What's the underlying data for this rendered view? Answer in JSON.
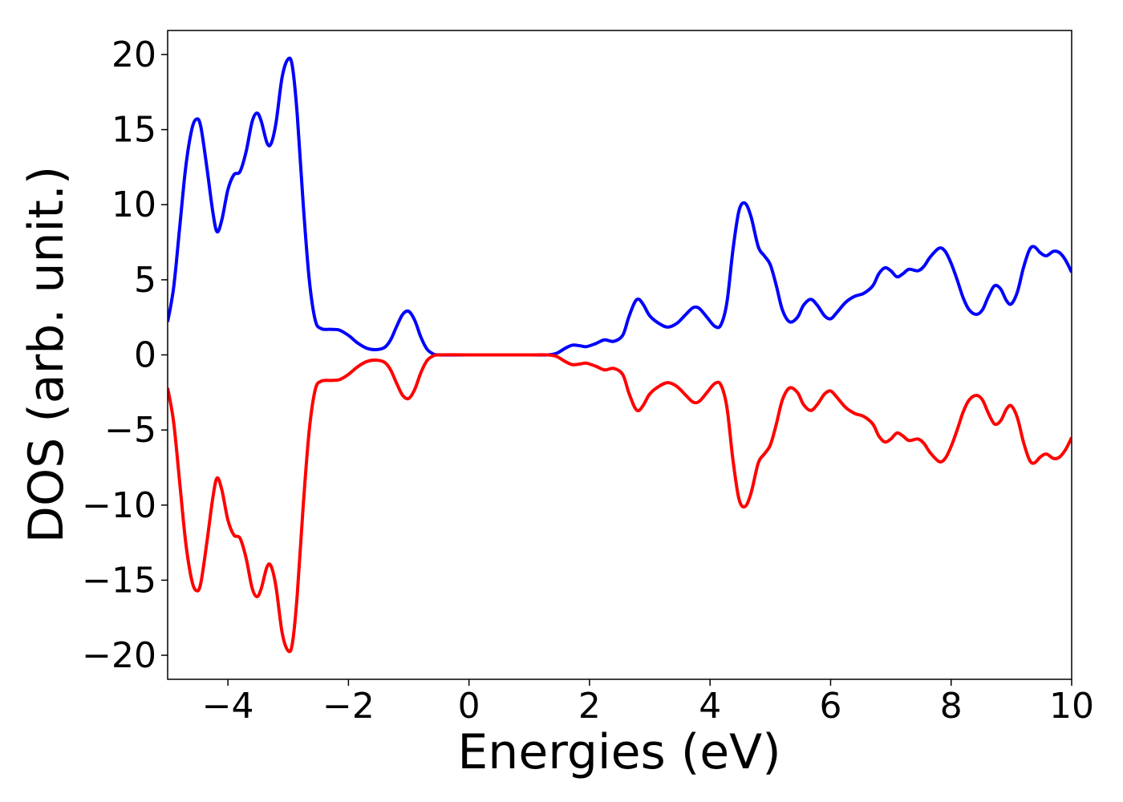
{
  "chart_data": {
    "type": "line",
    "xlabel": "Energies (eV)",
    "ylabel": "DOS (arb. unit.)",
    "xlim": [
      -5,
      10
    ],
    "ylim": [
      -21.6,
      21.6
    ],
    "grid": false,
    "x_ticks": [
      -4,
      -2,
      0,
      2,
      4,
      6,
      8,
      10
    ],
    "y_ticks": [
      -20,
      -15,
      -10,
      -5,
      0,
      5,
      10,
      15,
      20
    ],
    "x_tick_labels": [
      "−4",
      "−2",
      "0",
      "2",
      "4",
      "6",
      "8",
      "10"
    ],
    "y_tick_labels": [
      "−20",
      "−15",
      "−10",
      "−5",
      "0",
      "5",
      "10",
      "15",
      "20"
    ],
    "series": [
      {
        "color": "#0000ff",
        "points": [
          [
            -5.0,
            2.2
          ],
          [
            -4.9,
            4.5
          ],
          [
            -4.8,
            8.5
          ],
          [
            -4.7,
            12.5
          ],
          [
            -4.6,
            15.0
          ],
          [
            -4.52,
            15.7
          ],
          [
            -4.45,
            15.2
          ],
          [
            -4.35,
            12.5
          ],
          [
            -4.25,
            9.5
          ],
          [
            -4.18,
            8.2
          ],
          [
            -4.1,
            9.0
          ],
          [
            -4.0,
            11.0
          ],
          [
            -3.9,
            12.0
          ],
          [
            -3.8,
            12.2
          ],
          [
            -3.7,
            13.5
          ],
          [
            -3.6,
            15.5
          ],
          [
            -3.52,
            16.1
          ],
          [
            -3.45,
            15.6
          ],
          [
            -3.35,
            14.1
          ],
          [
            -3.28,
            14.1
          ],
          [
            -3.2,
            15.5
          ],
          [
            -3.1,
            18.5
          ],
          [
            -3.0,
            19.7
          ],
          [
            -2.93,
            19.2
          ],
          [
            -2.85,
            16.0
          ],
          [
            -2.75,
            10.0
          ],
          [
            -2.65,
            5.0
          ],
          [
            -2.55,
            2.3
          ],
          [
            -2.45,
            1.75
          ],
          [
            -2.3,
            1.7
          ],
          [
            -2.15,
            1.65
          ],
          [
            -2.0,
            1.3
          ],
          [
            -1.85,
            0.8
          ],
          [
            -1.7,
            0.45
          ],
          [
            -1.55,
            0.35
          ],
          [
            -1.4,
            0.5
          ],
          [
            -1.3,
            1.0
          ],
          [
            -1.2,
            1.9
          ],
          [
            -1.1,
            2.7
          ],
          [
            -1.0,
            2.9
          ],
          [
            -0.9,
            2.3
          ],
          [
            -0.8,
            1.2
          ],
          [
            -0.7,
            0.4
          ],
          [
            -0.6,
            0.08
          ],
          [
            -0.5,
            0.0
          ],
          [
            0.0,
            0.0
          ],
          [
            1.0,
            0.0
          ],
          [
            1.3,
            0.0
          ],
          [
            1.45,
            0.1
          ],
          [
            1.6,
            0.45
          ],
          [
            1.72,
            0.65
          ],
          [
            1.85,
            0.6
          ],
          [
            1.95,
            0.55
          ],
          [
            2.1,
            0.75
          ],
          [
            2.25,
            1.0
          ],
          [
            2.4,
            0.9
          ],
          [
            2.55,
            1.3
          ],
          [
            2.65,
            2.5
          ],
          [
            2.75,
            3.5
          ],
          [
            2.82,
            3.7
          ],
          [
            2.9,
            3.3
          ],
          [
            3.0,
            2.6
          ],
          [
            3.15,
            2.1
          ],
          [
            3.3,
            1.85
          ],
          [
            3.45,
            2.1
          ],
          [
            3.6,
            2.7
          ],
          [
            3.72,
            3.15
          ],
          [
            3.82,
            3.1
          ],
          [
            3.95,
            2.5
          ],
          [
            4.08,
            1.9
          ],
          [
            4.18,
            2.0
          ],
          [
            4.28,
            3.5
          ],
          [
            4.38,
            7.0
          ],
          [
            4.48,
            9.6
          ],
          [
            4.58,
            10.1
          ],
          [
            4.68,
            9.2
          ],
          [
            4.8,
            7.2
          ],
          [
            4.9,
            6.6
          ],
          [
            5.0,
            6.0
          ],
          [
            5.1,
            4.6
          ],
          [
            5.2,
            3.0
          ],
          [
            5.32,
            2.2
          ],
          [
            5.45,
            2.5
          ],
          [
            5.55,
            3.3
          ],
          [
            5.67,
            3.7
          ],
          [
            5.78,
            3.3
          ],
          [
            5.9,
            2.6
          ],
          [
            6.0,
            2.4
          ],
          [
            6.1,
            2.8
          ],
          [
            6.25,
            3.5
          ],
          [
            6.4,
            3.9
          ],
          [
            6.55,
            4.1
          ],
          [
            6.7,
            4.6
          ],
          [
            6.8,
            5.4
          ],
          [
            6.9,
            5.8
          ],
          [
            7.0,
            5.6
          ],
          [
            7.1,
            5.2
          ],
          [
            7.2,
            5.4
          ],
          [
            7.3,
            5.7
          ],
          [
            7.45,
            5.6
          ],
          [
            7.55,
            5.9
          ],
          [
            7.65,
            6.5
          ],
          [
            7.8,
            7.1
          ],
          [
            7.9,
            6.9
          ],
          [
            8.0,
            6.1
          ],
          [
            8.1,
            5.0
          ],
          [
            8.2,
            3.8
          ],
          [
            8.3,
            3.0
          ],
          [
            8.42,
            2.7
          ],
          [
            8.52,
            3.0
          ],
          [
            8.62,
            3.9
          ],
          [
            8.72,
            4.6
          ],
          [
            8.82,
            4.4
          ],
          [
            8.92,
            3.6
          ],
          [
            9.0,
            3.4
          ],
          [
            9.1,
            4.2
          ],
          [
            9.2,
            5.8
          ],
          [
            9.3,
            7.0
          ],
          [
            9.38,
            7.2
          ],
          [
            9.48,
            6.8
          ],
          [
            9.58,
            6.6
          ],
          [
            9.7,
            6.9
          ],
          [
            9.8,
            6.8
          ],
          [
            9.9,
            6.3
          ],
          [
            10.0,
            5.5
          ]
        ]
      },
      {
        "color": "#ff0000",
        "points": [
          [
            -5.0,
            -2.2
          ],
          [
            -4.9,
            -4.5
          ],
          [
            -4.8,
            -8.5
          ],
          [
            -4.7,
            -12.5
          ],
          [
            -4.6,
            -15.0
          ],
          [
            -4.52,
            -15.7
          ],
          [
            -4.45,
            -15.2
          ],
          [
            -4.35,
            -12.5
          ],
          [
            -4.25,
            -9.5
          ],
          [
            -4.18,
            -8.2
          ],
          [
            -4.1,
            -9.0
          ],
          [
            -4.0,
            -11.0
          ],
          [
            -3.9,
            -12.0
          ],
          [
            -3.8,
            -12.2
          ],
          [
            -3.7,
            -13.5
          ],
          [
            -3.6,
            -15.5
          ],
          [
            -3.52,
            -16.1
          ],
          [
            -3.45,
            -15.6
          ],
          [
            -3.35,
            -14.1
          ],
          [
            -3.28,
            -14.1
          ],
          [
            -3.2,
            -15.5
          ],
          [
            -3.1,
            -18.5
          ],
          [
            -3.0,
            -19.7
          ],
          [
            -2.93,
            -19.2
          ],
          [
            -2.85,
            -16.0
          ],
          [
            -2.75,
            -10.0
          ],
          [
            -2.65,
            -5.0
          ],
          [
            -2.55,
            -2.3
          ],
          [
            -2.45,
            -1.75
          ],
          [
            -2.3,
            -1.7
          ],
          [
            -2.15,
            -1.65
          ],
          [
            -2.0,
            -1.3
          ],
          [
            -1.85,
            -0.8
          ],
          [
            -1.7,
            -0.45
          ],
          [
            -1.55,
            -0.35
          ],
          [
            -1.4,
            -0.5
          ],
          [
            -1.3,
            -1.0
          ],
          [
            -1.2,
            -1.9
          ],
          [
            -1.1,
            -2.7
          ],
          [
            -1.0,
            -2.9
          ],
          [
            -0.9,
            -2.3
          ],
          [
            -0.8,
            -1.2
          ],
          [
            -0.7,
            -0.4
          ],
          [
            -0.6,
            -0.08
          ],
          [
            -0.5,
            0.0
          ],
          [
            0.0,
            0.0
          ],
          [
            1.0,
            0.0
          ],
          [
            1.3,
            0.0
          ],
          [
            1.45,
            -0.1
          ],
          [
            1.6,
            -0.45
          ],
          [
            1.72,
            -0.65
          ],
          [
            1.85,
            -0.6
          ],
          [
            1.95,
            -0.55
          ],
          [
            2.1,
            -0.75
          ],
          [
            2.25,
            -1.0
          ],
          [
            2.4,
            -0.9
          ],
          [
            2.55,
            -1.3
          ],
          [
            2.65,
            -2.5
          ],
          [
            2.75,
            -3.5
          ],
          [
            2.82,
            -3.7
          ],
          [
            2.9,
            -3.3
          ],
          [
            3.0,
            -2.6
          ],
          [
            3.15,
            -2.1
          ],
          [
            3.3,
            -1.85
          ],
          [
            3.45,
            -2.1
          ],
          [
            3.6,
            -2.7
          ],
          [
            3.72,
            -3.15
          ],
          [
            3.82,
            -3.1
          ],
          [
            3.95,
            -2.5
          ],
          [
            4.08,
            -1.9
          ],
          [
            4.18,
            -2.0
          ],
          [
            4.28,
            -3.5
          ],
          [
            4.38,
            -7.0
          ],
          [
            4.48,
            -9.6
          ],
          [
            4.58,
            -10.1
          ],
          [
            4.68,
            -9.2
          ],
          [
            4.8,
            -7.2
          ],
          [
            4.9,
            -6.6
          ],
          [
            5.0,
            -6.0
          ],
          [
            5.1,
            -4.6
          ],
          [
            5.2,
            -3.0
          ],
          [
            5.32,
            -2.2
          ],
          [
            5.45,
            -2.5
          ],
          [
            5.55,
            -3.3
          ],
          [
            5.67,
            -3.7
          ],
          [
            5.78,
            -3.3
          ],
          [
            5.9,
            -2.6
          ],
          [
            6.0,
            -2.4
          ],
          [
            6.1,
            -2.8
          ],
          [
            6.25,
            -3.5
          ],
          [
            6.4,
            -3.9
          ],
          [
            6.55,
            -4.1
          ],
          [
            6.7,
            -4.6
          ],
          [
            6.8,
            -5.4
          ],
          [
            6.9,
            -5.8
          ],
          [
            7.0,
            -5.6
          ],
          [
            7.1,
            -5.2
          ],
          [
            7.2,
            -5.4
          ],
          [
            7.3,
            -5.7
          ],
          [
            7.45,
            -5.6
          ],
          [
            7.55,
            -5.9
          ],
          [
            7.65,
            -6.5
          ],
          [
            7.8,
            -7.1
          ],
          [
            7.9,
            -6.9
          ],
          [
            8.0,
            -6.1
          ],
          [
            8.1,
            -5.0
          ],
          [
            8.2,
            -3.8
          ],
          [
            8.3,
            -3.0
          ],
          [
            8.42,
            -2.7
          ],
          [
            8.52,
            -3.0
          ],
          [
            8.62,
            -3.9
          ],
          [
            8.72,
            -4.6
          ],
          [
            8.82,
            -4.4
          ],
          [
            8.92,
            -3.6
          ],
          [
            9.0,
            -3.4
          ],
          [
            9.1,
            -4.2
          ],
          [
            9.2,
            -5.8
          ],
          [
            9.3,
            -7.0
          ],
          [
            9.38,
            -7.2
          ],
          [
            9.48,
            -6.8
          ],
          [
            9.58,
            -6.6
          ],
          [
            9.7,
            -6.9
          ],
          [
            9.8,
            -6.8
          ],
          [
            9.9,
            -6.3
          ],
          [
            10.0,
            -5.5
          ]
        ]
      }
    ]
  }
}
